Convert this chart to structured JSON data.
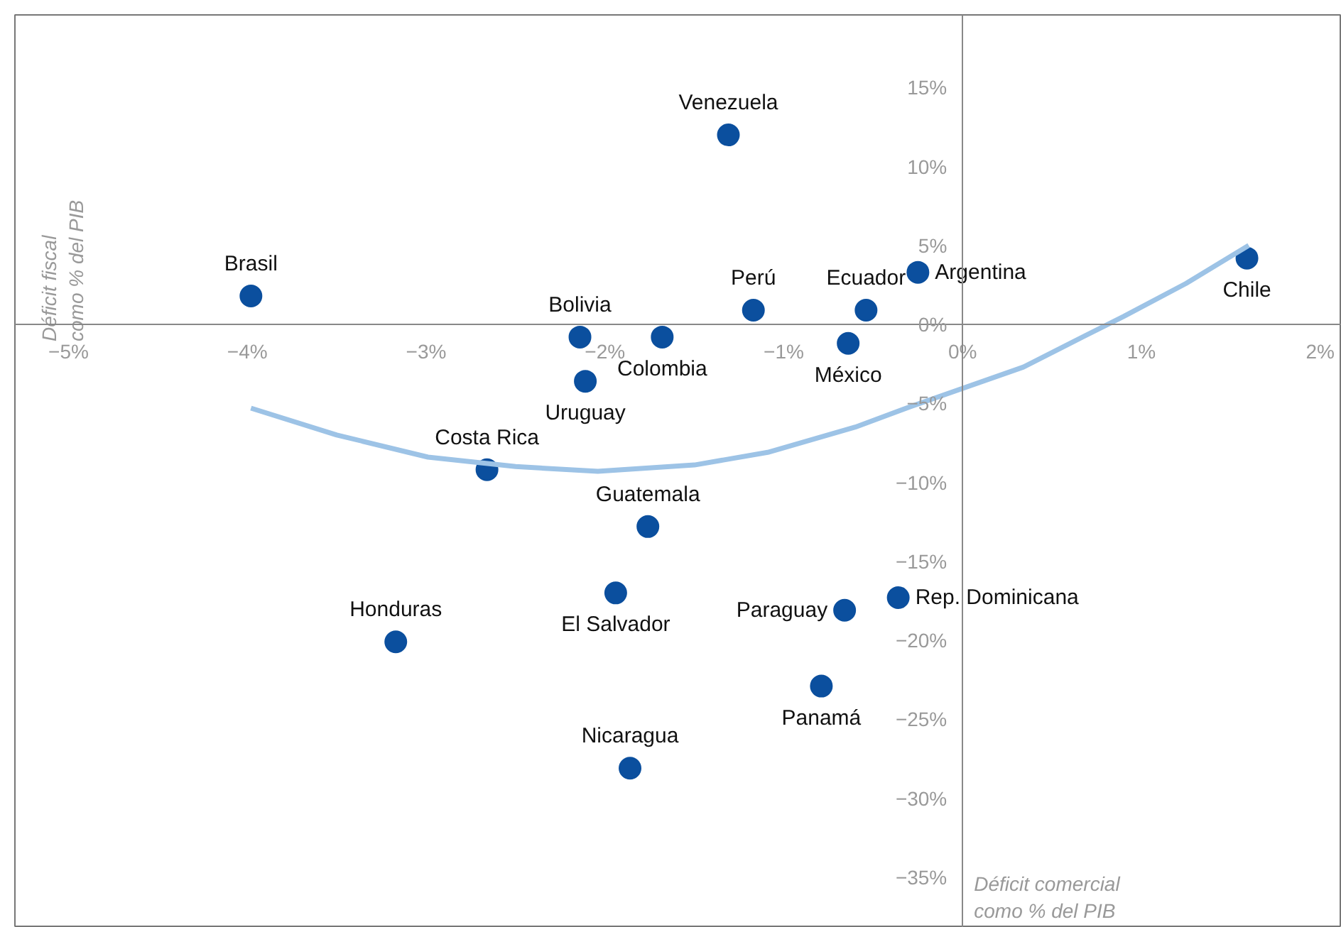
{
  "chart_data": {
    "type": "scatter",
    "xlabel": "Déficit comercial\ncomo % del PIB",
    "ylabel": "Déficit fiscal\ncomo % del PIB",
    "xlim": [
      -5.3,
      2.12
    ],
    "ylim": [
      -38.2,
      19.6
    ],
    "xticks": [
      {
        "value": -5,
        "label": "−5%"
      },
      {
        "value": -4,
        "label": "−4%"
      },
      {
        "value": -3,
        "label": "−3%"
      },
      {
        "value": -2,
        "label": "−2%"
      },
      {
        "value": -1,
        "label": "−1%"
      },
      {
        "value": 0,
        "label": "0%"
      },
      {
        "value": 1,
        "label": "1%"
      },
      {
        "value": 2,
        "label": "2%"
      }
    ],
    "yticks": [
      {
        "value": 15,
        "label": "15%"
      },
      {
        "value": 10,
        "label": "10%"
      },
      {
        "value": 5,
        "label": "5%"
      },
      {
        "value": 0,
        "label": "0%"
      },
      {
        "value": -5,
        "label": "−5%"
      },
      {
        "value": -10,
        "label": "−10%"
      },
      {
        "value": -15,
        "label": "−15%"
      },
      {
        "value": -20,
        "label": "−20%"
      },
      {
        "value": -25,
        "label": "−25%"
      },
      {
        "value": -30,
        "label": "−30%"
      },
      {
        "value": -35,
        "label": "−35%"
      }
    ],
    "grid": false,
    "series": [
      {
        "marker": "circle",
        "color": "#0b4f9e",
        "x": [
          -1.31,
          -3.98,
          -1.17,
          -0.54,
          -0.25,
          1.59,
          -2.14,
          -1.68,
          -0.64,
          -2.11,
          -2.66,
          -1.76,
          -1.94,
          -3.17,
          -0.66,
          -0.36,
          -0.79,
          -1.86
        ],
        "values": [
          12.0,
          1.8,
          0.9,
          0.9,
          3.3,
          4.2,
          -0.8,
          -0.8,
          -1.2,
          -3.6,
          -9.2,
          -12.8,
          -17.0,
          -20.1,
          -18.1,
          -17.3,
          -22.9,
          -28.1
        ]
      },
      {
        "type": "line",
        "color": "#9dc3e6",
        "line_style": "solid",
        "x": [
          -3.98,
          -3.5,
          -2.99,
          -2.5,
          -2.04,
          -1.5,
          -1.09,
          -0.6,
          -0.29,
          0.34,
          0.6,
          0.9,
          1.25,
          1.6
        ],
        "values": [
          -5.3,
          -7.0,
          -8.4,
          -9.0,
          -9.3,
          -8.9,
          -8.1,
          -6.5,
          -5.2,
          -2.7,
          -1.2,
          0.5,
          2.6,
          5.0
        ]
      }
    ],
    "annotations": [
      {
        "text": "Venezuela",
        "x": -1.31,
        "y": 12.0
      },
      {
        "text": "Brasil",
        "x": -3.98,
        "y": 1.8
      },
      {
        "text": "Perú",
        "x": -1.17,
        "y": 0.9
      },
      {
        "text": "Ecuador",
        "x": -0.54,
        "y": 0.9
      },
      {
        "text": "Argentina",
        "x": -0.25,
        "y": 3.3
      },
      {
        "text": "Chile",
        "x": 1.59,
        "y": 4.2
      },
      {
        "text": "Bolivia",
        "x": -2.14,
        "y": -0.8
      },
      {
        "text": "Colombia",
        "x": -1.68,
        "y": -0.8
      },
      {
        "text": "México",
        "x": -0.64,
        "y": -1.2
      },
      {
        "text": "Uruguay",
        "x": -2.11,
        "y": -3.6
      },
      {
        "text": "Costa Rica",
        "x": -2.66,
        "y": -9.2
      },
      {
        "text": "Guatemala",
        "x": -1.76,
        "y": -12.8
      },
      {
        "text": "El Salvador",
        "x": -1.94,
        "y": -17.0
      },
      {
        "text": "Honduras",
        "x": -3.17,
        "y": -20.1
      },
      {
        "text": "Paraguay",
        "x": -0.66,
        "y": -18.1
      },
      {
        "text": "Rep. Dominicana",
        "x": -0.36,
        "y": -17.3
      },
      {
        "text": "Panamá",
        "x": -0.79,
        "y": -22.9
      },
      {
        "text": "Nicaragua",
        "x": -1.86,
        "y": -28.1
      }
    ]
  }
}
